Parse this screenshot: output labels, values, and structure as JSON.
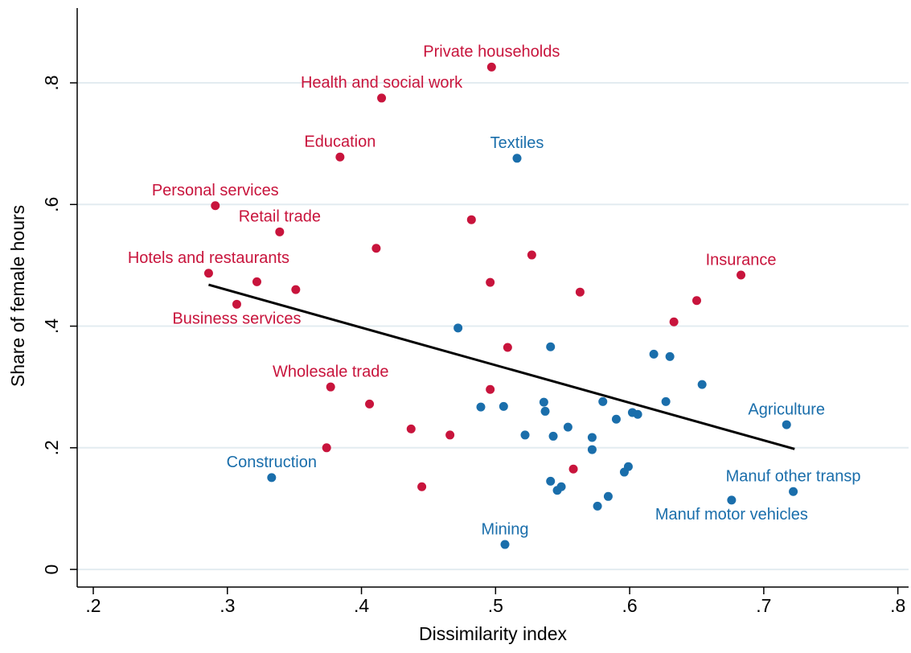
{
  "chart_data": {
    "type": "scatter",
    "x_label": "Dissimilarity index",
    "y_label": "Share of female hours",
    "xlim": [
      0.188,
      0.808
    ],
    "ylim": [
      -0.029,
      0.923
    ],
    "xticks": [
      {
        "value": 0.2,
        "label": ".2"
      },
      {
        "value": 0.3,
        "label": ".3"
      },
      {
        "value": 0.4,
        "label": ".4"
      },
      {
        "value": 0.5,
        "label": ".5"
      },
      {
        "value": 0.6,
        "label": ".6"
      },
      {
        "value": 0.7,
        "label": ".7"
      },
      {
        "value": 0.8,
        "label": ".8"
      }
    ],
    "yticks": [
      0,
      {
        "value": 0.2,
        "label": ".2"
      },
      {
        "value": 0.4,
        "label": ".4"
      },
      {
        "value": 0.6,
        "label": ".6"
      },
      {
        "value": 0.8,
        "label": ".8"
      }
    ],
    "grid": true,
    "series": [
      {
        "color": "#c8143c",
        "x": [
          0.497,
          0.415,
          0.384,
          0.291,
          0.339,
          0.286,
          0.322,
          0.351,
          0.307,
          0.411,
          0.482,
          0.496,
          0.527,
          0.563,
          0.509,
          0.683,
          0.65,
          0.633,
          0.377,
          0.406,
          0.437,
          0.466,
          0.496,
          0.374,
          0.445,
          0.558
        ],
        "values": [
          0.826,
          0.775,
          0.678,
          0.598,
          0.555,
          0.487,
          0.473,
          0.46,
          0.436,
          0.528,
          0.575,
          0.472,
          0.517,
          0.456,
          0.365,
          0.484,
          0.442,
          0.407,
          0.3,
          0.272,
          0.231,
          0.221,
          0.296,
          0.2,
          0.136,
          0.165
        ],
        "labels": [
          "Private households",
          "Health and social work",
          "Education",
          "Personal services",
          "Retail trade",
          "Hotels and restaurants",
          null,
          null,
          "Business services",
          null,
          null,
          null,
          null,
          null,
          null,
          "Insurance",
          null,
          null,
          "Wholesale trade",
          null,
          null,
          null,
          null,
          null,
          null,
          null
        ]
      },
      {
        "color": "#1a6eab",
        "x": [
          0.516,
          0.472,
          0.541,
          0.618,
          0.63,
          0.654,
          0.627,
          0.58,
          0.536,
          0.537,
          0.489,
          0.506,
          0.602,
          0.606,
          0.59,
          0.554,
          0.522,
          0.543,
          0.572,
          0.572,
          0.717,
          0.599,
          0.596,
          0.541,
          0.549,
          0.546,
          0.584,
          0.576,
          0.722,
          0.676,
          0.333,
          0.507
        ],
        "values": [
          0.676,
          0.397,
          0.366,
          0.354,
          0.35,
          0.304,
          0.276,
          0.276,
          0.275,
          0.26,
          0.267,
          0.268,
          0.258,
          0.255,
          0.247,
          0.234,
          0.221,
          0.219,
          0.217,
          0.197,
          0.238,
          0.169,
          0.16,
          0.145,
          0.136,
          0.13,
          0.12,
          0.104,
          0.128,
          0.114,
          0.151,
          0.041
        ],
        "labels": [
          "Textiles",
          null,
          null,
          null,
          null,
          null,
          null,
          null,
          null,
          null,
          null,
          null,
          null,
          null,
          null,
          null,
          null,
          null,
          null,
          null,
          "Agriculture",
          null,
          null,
          null,
          null,
          null,
          null,
          null,
          "Manuf other transp",
          "Manuf motor vehicles",
          "Construction",
          "Mining"
        ]
      }
    ],
    "fit": {
      "color": "#000000",
      "x": [
        0.286,
        0.723
      ],
      "values": [
        0.468,
        0.198
      ]
    }
  }
}
